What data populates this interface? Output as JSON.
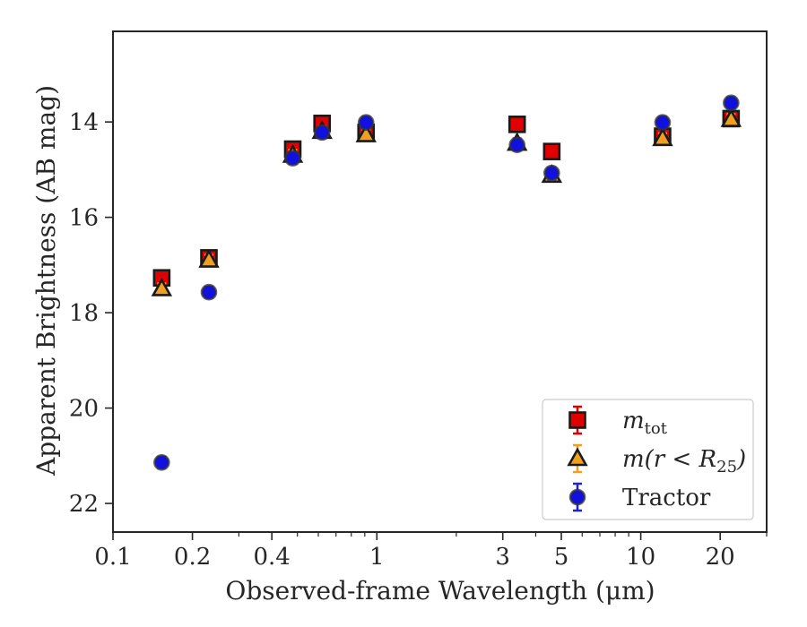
{
  "chart_data": {
    "type": "scatter",
    "title": "",
    "xlabel": "Observed-frame Wavelength (μm)",
    "ylabel": "Apparent Brightness (AB mag)",
    "xscale": "log",
    "xlim": [
      0.1,
      30
    ],
    "ylim": [
      22.6,
      12.1
    ],
    "y_inverted": true,
    "grid": false,
    "legend_position": "lower-right",
    "xticks": [
      {
        "value": 0.1,
        "label": "0.1"
      },
      {
        "value": 0.2,
        "label": "0.2"
      },
      {
        "value": 0.4,
        "label": "0.4"
      },
      {
        "value": 1,
        "label": "1"
      },
      {
        "value": 3,
        "label": "3"
      },
      {
        "value": 5,
        "label": "5"
      },
      {
        "value": 10,
        "label": "10"
      },
      {
        "value": 20,
        "label": "20"
      }
    ],
    "xminor": [
      0.3,
      0.5,
      0.6,
      0.7,
      0.8,
      0.9,
      2,
      4,
      6,
      7,
      8,
      9,
      30
    ],
    "yticks": [
      {
        "value": 14,
        "label": "14"
      },
      {
        "value": 16,
        "label": "16"
      },
      {
        "value": 18,
        "label": "18"
      },
      {
        "value": 20,
        "label": "20"
      },
      {
        "value": 22,
        "label": "22"
      }
    ],
    "series": [
      {
        "key": "mtot",
        "marker": "square",
        "fill": "#e00000",
        "errcolor": "#e00000",
        "x": [
          0.153,
          0.231,
          0.48,
          0.62,
          0.91,
          3.4,
          4.6,
          12.1,
          22.0
        ],
        "y": [
          17.27,
          16.85,
          14.57,
          14.03,
          14.22,
          14.05,
          14.62,
          14.3,
          13.93
        ]
      },
      {
        "key": "mr25",
        "marker": "triangle",
        "fill": "#f0a020",
        "errcolor": "#f0a020",
        "x": [
          0.153,
          0.231,
          0.48,
          0.62,
          0.91,
          3.4,
          4.6,
          12.1,
          22.0
        ],
        "y": [
          17.5,
          16.9,
          14.7,
          14.2,
          14.27,
          14.45,
          15.12,
          14.35,
          13.95
        ]
      },
      {
        "key": "tractor",
        "marker": "circle",
        "fill": "#1010e0",
        "errcolor": "#2020e0",
        "x": [
          0.153,
          0.231,
          0.48,
          0.62,
          0.91,
          3.4,
          4.6,
          12.1,
          22.0
        ],
        "y": [
          21.14,
          17.57,
          14.76,
          14.22,
          14.01,
          14.48,
          15.07,
          14.01,
          13.6
        ]
      }
    ],
    "legend": [
      {
        "key": "mtot",
        "label_main": "m",
        "label_sub": "tot",
        "label_tail": ""
      },
      {
        "key": "mr25",
        "label_main": "m(r < R",
        "label_sub": "25",
        "label_tail": ")"
      },
      {
        "key": "tractor",
        "label_main": "Tractor",
        "label_sub": "",
        "label_tail": ""
      }
    ]
  }
}
